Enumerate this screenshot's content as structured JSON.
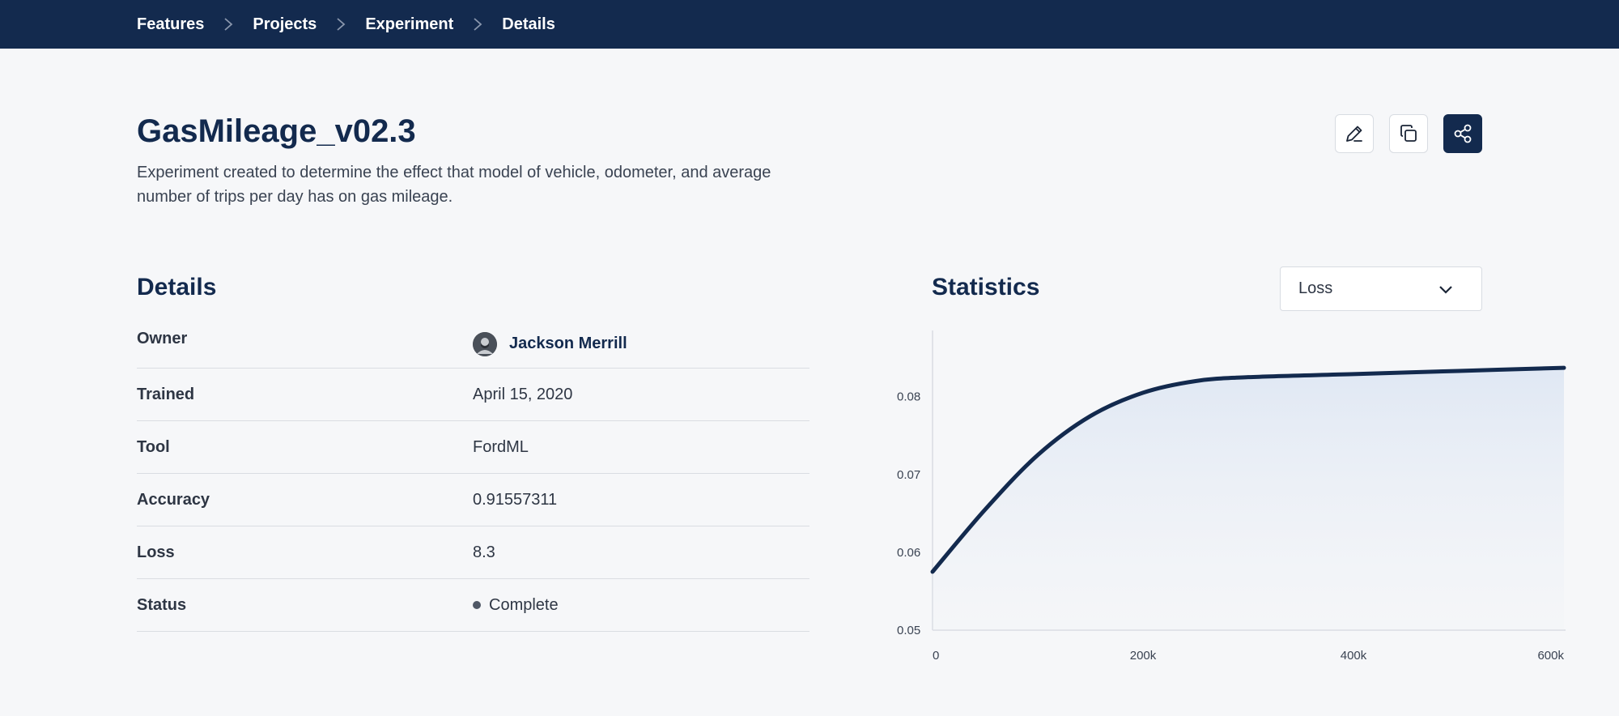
{
  "breadcrumb": [
    "Features",
    "Projects",
    "Experiment",
    "Details"
  ],
  "header": {
    "title": "GasMileage_v02.3",
    "description": "Experiment created to determine the effect that model of vehicle, odometer, and average number of trips per day has on gas mileage."
  },
  "actions": [
    {
      "name": "edit",
      "icon": "pencil-icon"
    },
    {
      "name": "duplicate",
      "icon": "copy-icon"
    },
    {
      "name": "share",
      "icon": "share-icon"
    }
  ],
  "details": {
    "title": "Details",
    "owner_label": "Owner",
    "owner_name": "Jackson Merrill",
    "rows": [
      {
        "label": "Trained",
        "value": "April 15, 2020"
      },
      {
        "label": "Tool",
        "value": "FordML"
      },
      {
        "label": "Accuracy",
        "value": "0.91557311"
      },
      {
        "label": "Loss",
        "value": "8.3"
      },
      {
        "label": "Status",
        "value": "Complete"
      }
    ]
  },
  "statistics": {
    "title": "Statistics",
    "metric_select": "Loss"
  },
  "colors": {
    "navy": "#132a4e",
    "background": "#f6f7f9"
  },
  "chart_data": {
    "type": "area",
    "x": [
      0,
      50000,
      100000,
      150000,
      200000,
      250000,
      300000,
      400000,
      500000,
      600000
    ],
    "values": [
      0.0575,
      0.0655,
      0.0725,
      0.0775,
      0.0805,
      0.082,
      0.0825,
      0.0829,
      0.0833,
      0.0837
    ],
    "x_ticks": [
      "0",
      "200k",
      "400k",
      "600k"
    ],
    "x_tick_values": [
      0,
      200000,
      400000,
      600000
    ],
    "y_ticks": [
      "0.05",
      "0.06",
      "0.07",
      "0.08"
    ],
    "y_tick_values": [
      0.05,
      0.06,
      0.07,
      0.08
    ],
    "xlim": [
      0,
      600000
    ],
    "ylim": [
      0.05,
      0.0885
    ],
    "grid": false
  }
}
